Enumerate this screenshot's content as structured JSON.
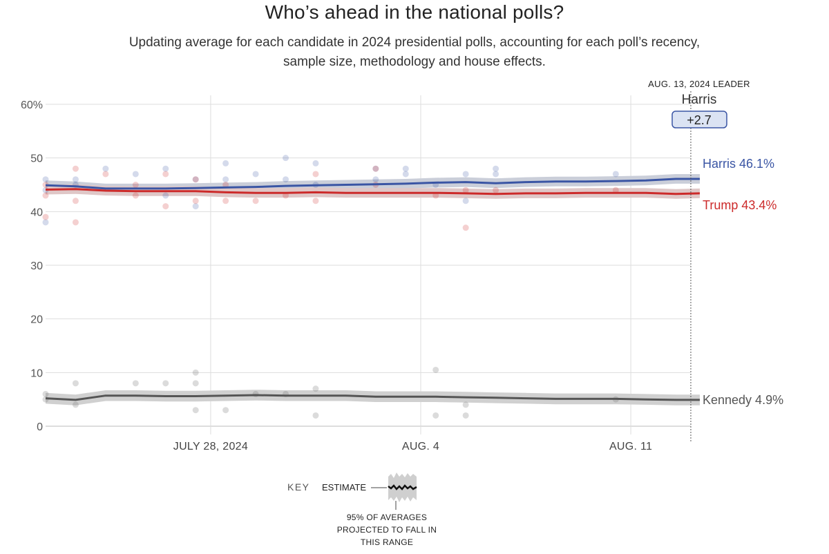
{
  "header": {
    "title": "Who’s ahead in the national polls?",
    "subtitle_line1": "Updating average for each candidate in 2024 presidential polls, accounting for each poll’s recency,",
    "subtitle_line2": "sample size, methodology and house effects."
  },
  "leader": {
    "date_label": "AUG. 13, 2024 LEADER",
    "name": "Harris",
    "margin": "+2.7"
  },
  "key": {
    "label": "KEY",
    "estimate_label": "ESTIMATE",
    "range_note_1": "95% OF AVERAGES",
    "range_note_2": "PROJECTED TO FALL IN",
    "range_note_3": "THIS RANGE"
  },
  "colors": {
    "harris": "#3a55a4",
    "trump": "#cc2a2a",
    "kennedy": "#555555",
    "grid": "#dddddd",
    "leader_box_fill": "#dbe3f3",
    "leader_box_stroke": "#3a55a4"
  },
  "chart_data": {
    "type": "line",
    "title": "Who’s ahead in the national polls?",
    "xlabel": "",
    "ylabel": "",
    "ylim": [
      0,
      60
    ],
    "yticks": [
      {
        "value": 0,
        "label": "0"
      },
      {
        "value": 10,
        "label": "10"
      },
      {
        "value": 20,
        "label": "20"
      },
      {
        "value": 30,
        "label": "30"
      },
      {
        "value": 40,
        "label": "40"
      },
      {
        "value": 50,
        "label": "50"
      },
      {
        "value": 60,
        "label": "60%"
      }
    ],
    "x_unit": "days since July 22, 2024",
    "xlim": [
      0.5,
      22.3
    ],
    "xticks": [
      {
        "value": 6,
        "label": "JULY 28, 2024"
      },
      {
        "value": 13,
        "label": "AUG. 4"
      },
      {
        "value": 20,
        "label": "AUG. 11"
      }
    ],
    "leader_marker_x": 22,
    "series": [
      {
        "name": "Harris",
        "end_label": "Harris 46.1%",
        "color": "#3a55a4",
        "band": 0.9,
        "x": [
          0.5,
          1.5,
          2.5,
          3.5,
          4.5,
          5.5,
          6.5,
          7.5,
          8.5,
          9.5,
          10.5,
          11.5,
          12.5,
          13.5,
          14.5,
          15.5,
          16.5,
          17.5,
          18.5,
          19.5,
          20.5,
          21.5,
          22.3
        ],
        "values": [
          44.9,
          44.7,
          44.3,
          44.3,
          44.3,
          44.4,
          44.5,
          44.6,
          44.8,
          44.9,
          45.0,
          45.1,
          45.2,
          45.4,
          45.5,
          45.3,
          45.5,
          45.6,
          45.6,
          45.7,
          45.8,
          46.1,
          46.1
        ],
        "polls": [
          {
            "x": 0.5,
            "y": 46
          },
          {
            "x": 0.5,
            "y": 38
          },
          {
            "x": 0.5,
            "y": 44
          },
          {
            "x": 1.5,
            "y": 46
          },
          {
            "x": 1.5,
            "y": 45
          },
          {
            "x": 2.5,
            "y": 48
          },
          {
            "x": 3.5,
            "y": 47
          },
          {
            "x": 4.5,
            "y": 48
          },
          {
            "x": 4.5,
            "y": 43
          },
          {
            "x": 5.5,
            "y": 46
          },
          {
            "x": 5.5,
            "y": 41
          },
          {
            "x": 6.5,
            "y": 49
          },
          {
            "x": 6.5,
            "y": 46
          },
          {
            "x": 7.5,
            "y": 47
          },
          {
            "x": 8.5,
            "y": 46
          },
          {
            "x": 8.5,
            "y": 50
          },
          {
            "x": 9.5,
            "y": 49
          },
          {
            "x": 9.5,
            "y": 45
          },
          {
            "x": 11.5,
            "y": 48
          },
          {
            "x": 11.5,
            "y": 46
          },
          {
            "x": 12.5,
            "y": 48
          },
          {
            "x": 12.5,
            "y": 47
          },
          {
            "x": 13.5,
            "y": 45
          },
          {
            "x": 14.5,
            "y": 47
          },
          {
            "x": 14.5,
            "y": 42
          },
          {
            "x": 15.5,
            "y": 48
          },
          {
            "x": 15.5,
            "y": 47
          },
          {
            "x": 19.5,
            "y": 47
          }
        ]
      },
      {
        "name": "Trump",
        "end_label": "Trump 43.4%",
        "color": "#cc2a2a",
        "band": 0.9,
        "x": [
          0.5,
          1.5,
          2.5,
          3.5,
          4.5,
          5.5,
          6.5,
          7.5,
          8.5,
          9.5,
          10.5,
          11.5,
          12.5,
          13.5,
          14.5,
          15.5,
          16.5,
          17.5,
          18.5,
          19.5,
          20.5,
          21.5,
          22.3
        ],
        "values": [
          44.1,
          44.2,
          43.9,
          43.8,
          43.8,
          43.8,
          43.6,
          43.5,
          43.5,
          43.6,
          43.5,
          43.5,
          43.5,
          43.5,
          43.4,
          43.3,
          43.4,
          43.4,
          43.5,
          43.5,
          43.5,
          43.3,
          43.4
        ],
        "polls": [
          {
            "x": 0.5,
            "y": 43
          },
          {
            "x": 0.5,
            "y": 39
          },
          {
            "x": 0.5,
            "y": 45
          },
          {
            "x": 1.5,
            "y": 48
          },
          {
            "x": 1.5,
            "y": 42
          },
          {
            "x": 1.5,
            "y": 38
          },
          {
            "x": 2.5,
            "y": 47
          },
          {
            "x": 3.5,
            "y": 45
          },
          {
            "x": 3.5,
            "y": 43
          },
          {
            "x": 4.5,
            "y": 47
          },
          {
            "x": 4.5,
            "y": 41
          },
          {
            "x": 5.5,
            "y": 46
          },
          {
            "x": 5.5,
            "y": 42
          },
          {
            "x": 6.5,
            "y": 45
          },
          {
            "x": 6.5,
            "y": 42
          },
          {
            "x": 7.5,
            "y": 42
          },
          {
            "x": 8.5,
            "y": 43
          },
          {
            "x": 9.5,
            "y": 47
          },
          {
            "x": 9.5,
            "y": 42
          },
          {
            "x": 11.5,
            "y": 48
          },
          {
            "x": 11.5,
            "y": 45
          },
          {
            "x": 13.5,
            "y": 43
          },
          {
            "x": 14.5,
            "y": 37
          },
          {
            "x": 14.5,
            "y": 44
          },
          {
            "x": 15.5,
            "y": 44
          },
          {
            "x": 19.5,
            "y": 44
          }
        ]
      },
      {
        "name": "Kennedy",
        "end_label": "Kennedy 4.9%",
        "color": "#555555",
        "band": 1.0,
        "x": [
          0.5,
          1.5,
          2.5,
          3.5,
          4.5,
          5.5,
          6.5,
          7.5,
          8.5,
          9.5,
          10.5,
          11.5,
          12.5,
          13.5,
          14.5,
          15.5,
          16.5,
          17.5,
          18.5,
          19.5,
          20.5,
          21.5,
          22.3
        ],
        "values": [
          5.2,
          4.9,
          5.7,
          5.7,
          5.6,
          5.6,
          5.7,
          5.8,
          5.7,
          5.7,
          5.7,
          5.5,
          5.5,
          5.5,
          5.4,
          5.3,
          5.2,
          5.1,
          5.1,
          5.1,
          5.0,
          4.9,
          4.9
        ],
        "polls": [
          {
            "x": 0.5,
            "y": 6
          },
          {
            "x": 0.5,
            "y": 5
          },
          {
            "x": 1.5,
            "y": 8
          },
          {
            "x": 1.5,
            "y": 4
          },
          {
            "x": 3.5,
            "y": 8
          },
          {
            "x": 4.5,
            "y": 8
          },
          {
            "x": 5.5,
            "y": 10
          },
          {
            "x": 5.5,
            "y": 8
          },
          {
            "x": 5.5,
            "y": 3
          },
          {
            "x": 6.5,
            "y": 3
          },
          {
            "x": 7.5,
            "y": 6
          },
          {
            "x": 8.5,
            "y": 6
          },
          {
            "x": 9.5,
            "y": 7
          },
          {
            "x": 9.5,
            "y": 2
          },
          {
            "x": 13.5,
            "y": 10.5
          },
          {
            "x": 13.5,
            "y": 2
          },
          {
            "x": 14.5,
            "y": 4
          },
          {
            "x": 14.5,
            "y": 2
          },
          {
            "x": 19.5,
            "y": 5
          }
        ]
      }
    ]
  }
}
